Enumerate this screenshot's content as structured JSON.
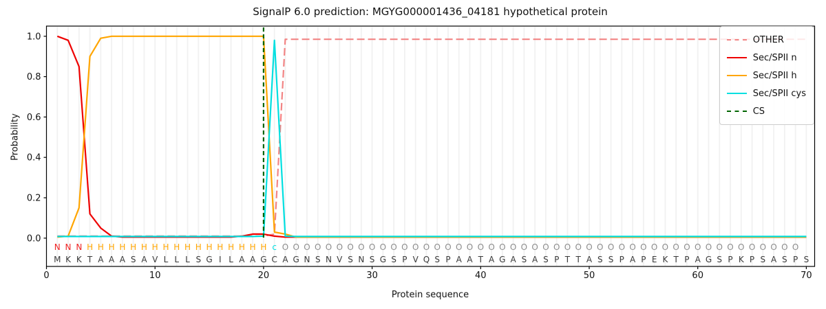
{
  "chart_data": {
    "type": "line",
    "title": "SignalP 6.0 prediction: MGYG000001436_04181 hypothetical protein",
    "xlabel": "Protein sequence",
    "ylabel": "Probability",
    "x_start": 1,
    "xlim": [
      0,
      70.7
    ],
    "ylim": [
      0,
      1.0
    ],
    "xticks": [
      0,
      10,
      20,
      30,
      40,
      50,
      60,
      70
    ],
    "yticks": [
      0.0,
      0.2,
      0.4,
      0.6,
      0.8,
      1.0
    ],
    "grid": "vertical-per-residue",
    "legend_position": "upper right",
    "series": [
      {
        "name": "OTHER",
        "color": "#f28484",
        "style": "dashed",
        "values": [
          0.01,
          0.01,
          0.01,
          0.01,
          0.01,
          0.01,
          0.01,
          0.01,
          0.01,
          0.01,
          0.01,
          0.01,
          0.01,
          0.01,
          0.01,
          0.01,
          0.01,
          0.01,
          0.01,
          0.01,
          0.02,
          0.985,
          0.985,
          0.985,
          0.985,
          0.985,
          0.985,
          0.985,
          0.985,
          0.985,
          0.985,
          0.985,
          0.985,
          0.985,
          0.985,
          0.985,
          0.985,
          0.985,
          0.985,
          0.985,
          0.985,
          0.985,
          0.985,
          0.985,
          0.985,
          0.985,
          0.985,
          0.985,
          0.985,
          0.985,
          0.985,
          0.985,
          0.985,
          0.985,
          0.985,
          0.985,
          0.985,
          0.985,
          0.985,
          0.985,
          0.985,
          0.985,
          0.985,
          0.985,
          0.985,
          0.985,
          0.985,
          0.985,
          0.985,
          0.985
        ]
      },
      {
        "name": "Sec/SPII n",
        "color": "#ee0000",
        "style": "solid",
        "values": [
          1.0,
          0.98,
          0.85,
          0.12,
          0.05,
          0.01,
          0.005,
          0.005,
          0.005,
          0.005,
          0.005,
          0.005,
          0.005,
          0.005,
          0.005,
          0.005,
          0.005,
          0.01,
          0.02,
          0.02,
          0.01,
          0.005,
          0.005,
          0.005,
          0.005,
          0.005,
          0.005,
          0.005,
          0.005,
          0.005,
          0.005,
          0.005,
          0.005,
          0.005,
          0.005,
          0.005,
          0.005,
          0.005,
          0.005,
          0.005,
          0.005,
          0.005,
          0.005,
          0.005,
          0.005,
          0.005,
          0.005,
          0.005,
          0.005,
          0.005,
          0.005,
          0.005,
          0.005,
          0.005,
          0.005,
          0.005,
          0.005,
          0.005,
          0.005,
          0.005,
          0.005,
          0.005,
          0.005,
          0.005,
          0.005,
          0.005,
          0.005,
          0.005,
          0.005,
          0.005
        ]
      },
      {
        "name": "Sec/SPII h",
        "color": "#ffa500",
        "style": "solid",
        "values": [
          0.005,
          0.01,
          0.15,
          0.9,
          0.99,
          1.0,
          1.0,
          1.0,
          1.0,
          1.0,
          1.0,
          1.0,
          1.0,
          1.0,
          1.0,
          1.0,
          1.0,
          1.0,
          1.0,
          1.0,
          0.03,
          0.02,
          0.005,
          0.005,
          0.005,
          0.005,
          0.005,
          0.005,
          0.005,
          0.005,
          0.005,
          0.005,
          0.005,
          0.005,
          0.005,
          0.005,
          0.005,
          0.005,
          0.005,
          0.005,
          0.005,
          0.005,
          0.005,
          0.005,
          0.005,
          0.005,
          0.005,
          0.005,
          0.005,
          0.005,
          0.005,
          0.005,
          0.005,
          0.005,
          0.005,
          0.005,
          0.005,
          0.005,
          0.005,
          0.005,
          0.005,
          0.005,
          0.005,
          0.005,
          0.005,
          0.005,
          0.005,
          0.005,
          0.005,
          0.005
        ]
      },
      {
        "name": "Sec/SPII cys",
        "color": "#00dfe0",
        "style": "solid",
        "values": [
          0.008,
          0.008,
          0.008,
          0.008,
          0.008,
          0.008,
          0.008,
          0.008,
          0.008,
          0.008,
          0.008,
          0.008,
          0.008,
          0.008,
          0.008,
          0.008,
          0.008,
          0.008,
          0.008,
          0.01,
          0.98,
          0.01,
          0.008,
          0.008,
          0.008,
          0.008,
          0.008,
          0.008,
          0.008,
          0.008,
          0.008,
          0.008,
          0.008,
          0.008,
          0.008,
          0.008,
          0.008,
          0.008,
          0.008,
          0.008,
          0.008,
          0.008,
          0.008,
          0.008,
          0.008,
          0.008,
          0.008,
          0.008,
          0.008,
          0.008,
          0.008,
          0.008,
          0.008,
          0.008,
          0.008,
          0.008,
          0.008,
          0.008,
          0.008,
          0.008,
          0.008,
          0.008,
          0.008,
          0.008,
          0.008,
          0.008,
          0.008,
          0.008,
          0.008,
          0.008
        ]
      }
    ],
    "cs_line": {
      "name": "CS",
      "color": "#006400",
      "style": "dashed",
      "x": 20
    },
    "sequence": "MKKTAAASAVLLLSGILAAGCAGNSNVSNSGSPVQSPAATAGASASPTTASSPAPEKTPAGSPKPSASPS",
    "annotation": "NNNHHHHHHHHHHHHHHHHHcOOOOOOOOOOOOOOOOOOOOOOOOOOOOOOOOOOOOOOOOOOOOOOOO",
    "annotation_colors": {
      "N": "#ee2222",
      "H": "#ffa500",
      "c": "#00dfe0",
      "O": "#8c8c8c"
    },
    "sequence_color": "#3a3a3a",
    "gridline_color": "#f1f1f1",
    "legend": {
      "items": [
        {
          "label": "OTHER",
          "color": "#f28484",
          "style": "dashed"
        },
        {
          "label": "Sec/SPII n",
          "color": "#ee0000",
          "style": "solid"
        },
        {
          "label": "Sec/SPII h",
          "color": "#ffa500",
          "style": "solid"
        },
        {
          "label": "Sec/SPII cys",
          "color": "#00dfe0",
          "style": "solid"
        },
        {
          "label": "CS",
          "color": "#006400",
          "style": "dashed"
        }
      ]
    }
  }
}
